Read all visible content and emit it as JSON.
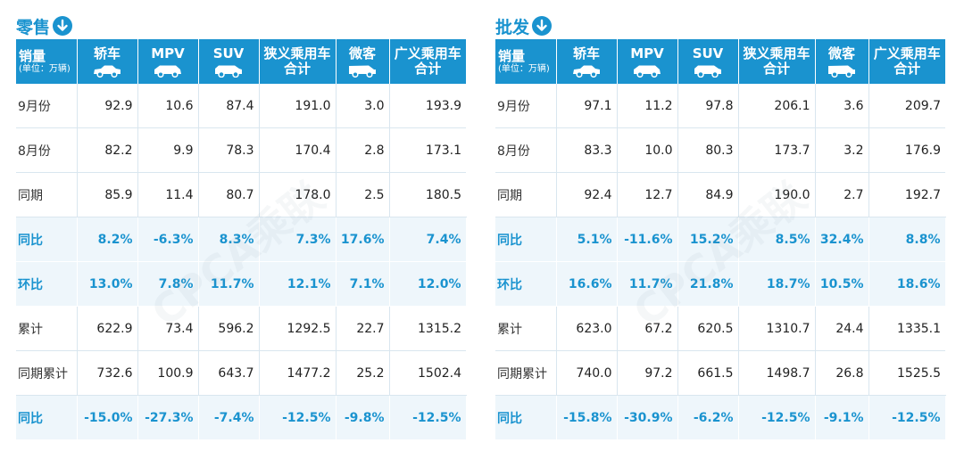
{
  "watermark": "CPCA乘联",
  "panels": [
    {
      "id": "retail",
      "title": "零售",
      "header": {
        "first_main": "销量",
        "first_sub": "(单位：万辆)",
        "cols": [
          "轿车",
          "MPV",
          "SUV",
          "狭义乘用车合计",
          "微客",
          "广义乘用车合计"
        ],
        "cols_line1": [
          "轿车",
          "MPV",
          "SUV",
          "狭义乘用车",
          "微客",
          "广义乘用车"
        ],
        "cols_line2": [
          "",
          "",
          "",
          "合计",
          "",
          "合计"
        ]
      },
      "rows": [
        {
          "label": "9月份",
          "values": [
            "92.9",
            "10.6",
            "87.4",
            "191.0",
            "3.0",
            "193.9"
          ],
          "highlight": false
        },
        {
          "label": "8月份",
          "values": [
            "82.2",
            "9.9",
            "78.3",
            "170.4",
            "2.8",
            "173.1"
          ],
          "highlight": false
        },
        {
          "label": "同期",
          "values": [
            "85.9",
            "11.4",
            "80.7",
            "178.0",
            "2.5",
            "180.5"
          ],
          "highlight": false
        },
        {
          "label": "同比",
          "values": [
            "8.2%",
            "-6.3%",
            "8.3%",
            "7.3%",
            "17.6%",
            "7.4%"
          ],
          "highlight": true
        },
        {
          "label": "环比",
          "values": [
            "13.0%",
            "7.8%",
            "11.7%",
            "12.1%",
            "7.1%",
            "12.0%"
          ],
          "highlight": true
        },
        {
          "label": "累计",
          "values": [
            "622.9",
            "73.4",
            "596.2",
            "1292.5",
            "22.7",
            "1315.2"
          ],
          "highlight": false
        },
        {
          "label": "同期累计",
          "values": [
            "732.6",
            "100.9",
            "643.7",
            "1477.2",
            "25.2",
            "1502.4"
          ],
          "highlight": false
        },
        {
          "label": "同比",
          "values": [
            "-15.0%",
            "-27.3%",
            "-7.4%",
            "-12.5%",
            "-9.8%",
            "-12.5%"
          ],
          "highlight": true
        }
      ]
    },
    {
      "id": "wholesale",
      "title": "批发",
      "header": {
        "first_main": "销量",
        "first_sub": "(单位：万辆)",
        "cols": [
          "轿车",
          "MPV",
          "SUV",
          "狭义乘用车合计",
          "微客",
          "广义乘用车合计"
        ],
        "cols_line1": [
          "轿车",
          "MPV",
          "SUV",
          "狭义乘用车",
          "微客",
          "广义乘用车"
        ],
        "cols_line2": [
          "",
          "",
          "",
          "合计",
          "",
          "合计"
        ]
      },
      "rows": [
        {
          "label": "9月份",
          "values": [
            "97.1",
            "11.2",
            "97.8",
            "206.1",
            "3.6",
            "209.7"
          ],
          "highlight": false
        },
        {
          "label": "8月份",
          "values": [
            "83.3",
            "10.0",
            "80.3",
            "173.7",
            "3.2",
            "176.9"
          ],
          "highlight": false
        },
        {
          "label": "同期",
          "values": [
            "92.4",
            "12.7",
            "84.9",
            "190.0",
            "2.7",
            "192.7"
          ],
          "highlight": false
        },
        {
          "label": "同比",
          "values": [
            "5.1%",
            "-11.6%",
            "15.2%",
            "8.5%",
            "32.4%",
            "8.8%"
          ],
          "highlight": true
        },
        {
          "label": "环比",
          "values": [
            "16.6%",
            "11.7%",
            "21.8%",
            "18.7%",
            "10.5%",
            "18.6%"
          ],
          "highlight": true
        },
        {
          "label": "累计",
          "values": [
            "623.0",
            "67.2",
            "620.5",
            "1310.7",
            "24.4",
            "1335.1"
          ],
          "highlight": false
        },
        {
          "label": "同期累计",
          "values": [
            "740.0",
            "97.2",
            "661.5",
            "1498.7",
            "26.8",
            "1525.5"
          ],
          "highlight": false
        },
        {
          "label": "同比",
          "values": [
            "-15.8%",
            "-30.9%",
            "-6.2%",
            "-12.5%",
            "-9.1%",
            "-12.5%"
          ],
          "highlight": true
        }
      ]
    }
  ],
  "icons": {
    "title_icon": "down-arrow-circle-icon",
    "car_icons": [
      "sedan-icon",
      "mpv-icon",
      "suv-icon",
      "",
      "van-icon",
      ""
    ]
  },
  "colors": {
    "accent": "#1a93cf",
    "highlight_bg": "#eef6fb"
  }
}
